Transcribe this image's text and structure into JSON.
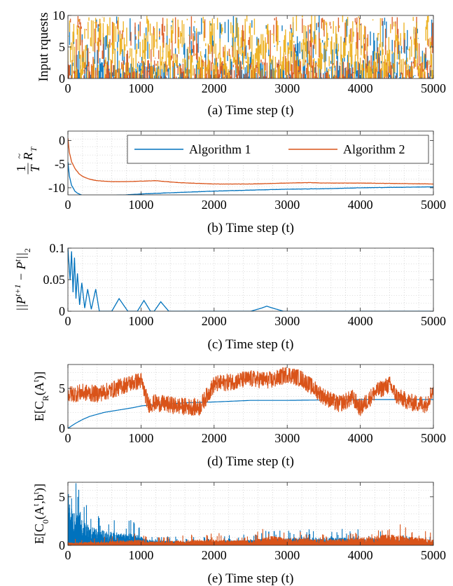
{
  "chart_data": [
    {
      "type": "bar",
      "ylabel": "Input rquests",
      "caption": "(a) Time step (t)",
      "xlim": [
        0,
        5000
      ],
      "ylim": [
        0,
        10
      ],
      "xticks": [
        0,
        1000,
        2000,
        3000,
        4000,
        5000
      ],
      "yticks": [
        0,
        5,
        10
      ],
      "grid": false,
      "series": [
        {
          "color": "#0072BD",
          "description": "dense random request counts over 5000 steps, range 0-10"
        },
        {
          "color": "#D95319",
          "description": "dense random request counts over 5000 steps, range 0-10"
        },
        {
          "color": "#EDB120",
          "description": "dense random request counts over 5000 steps, range 0-10"
        }
      ]
    },
    {
      "type": "line",
      "ylabel_frac_num": "1",
      "ylabel_frac_den": "T",
      "ylabel_sym": "R",
      "ylabel_sub": "T",
      "caption": "(b) Time step (t)",
      "xlim": [
        0,
        5000
      ],
      "ylim": [
        -11.5,
        2
      ],
      "xticks": [
        0,
        1000,
        2000,
        3000,
        4000,
        5000
      ],
      "yticks": [
        0,
        -5,
        -10
      ],
      "grid": true,
      "legend": "top-right",
      "series": [
        {
          "name": "Algorithm 1",
          "color": "#0072BD",
          "x": [
            0,
            20,
            50,
            100,
            150,
            200,
            300,
            400,
            600,
            800,
            1000,
            1500,
            2000,
            2500,
            3000,
            3500,
            4000,
            4500,
            5000
          ],
          "y": [
            -4.5,
            -7.5,
            -9.5,
            -10.8,
            -11.3,
            -11.6,
            -11.7,
            -11.7,
            -11.6,
            -11.5,
            -11.3,
            -11.0,
            -10.7,
            -10.5,
            -10.3,
            -10.2,
            -10.0,
            -9.9,
            -9.8
          ]
        },
        {
          "name": "Algorithm 2",
          "color": "#D95319",
          "x": [
            0,
            20,
            50,
            100,
            150,
            200,
            300,
            400,
            600,
            800,
            1000,
            1200,
            1500,
            2000,
            2500,
            3000,
            3300,
            3500,
            4000,
            4500,
            5000
          ],
          "y": [
            0.5,
            -2.5,
            -4.5,
            -6.0,
            -7.0,
            -7.6,
            -8.2,
            -8.5,
            -8.7,
            -8.7,
            -8.6,
            -8.5,
            -8.9,
            -9.2,
            -9.2,
            -9.0,
            -8.9,
            -9.0,
            -9.0,
            -9.1,
            -9.2
          ]
        }
      ]
    },
    {
      "type": "line",
      "ylabel": "||P^{t+1} − P^t||_2",
      "caption": "(c) Time step (t)",
      "xlim": [
        0,
        5000
      ],
      "ylim": [
        0,
        0.1
      ],
      "xticks": [
        0,
        1000,
        2000,
        3000,
        4000,
        5000
      ],
      "yticks": [
        0,
        0.05,
        0.1
      ],
      "grid": true,
      "series": [
        {
          "color": "#0072BD",
          "description": "damped oscillation: peaks ~0.09 near t=50, decaying to ~0.02 bumps near t=700, 1000, 1250; small bump 0.008 near t=2700; otherwise 0",
          "x": [
            0,
            30,
            50,
            70,
            90,
            110,
            130,
            160,
            190,
            230,
            270,
            320,
            380,
            430,
            600,
            700,
            820,
            950,
            1040,
            1130,
            1180,
            1270,
            1380,
            1500,
            2500,
            2650,
            2720,
            2800,
            2950,
            5000
          ],
          "y": [
            0.1,
            0.05,
            0.095,
            0.03,
            0.085,
            0.02,
            0.06,
            0.01,
            0.045,
            0.005,
            0.035,
            0.003,
            0.035,
            0.0,
            0.0,
            0.02,
            0.0,
            0.0,
            0.017,
            0.0,
            0.0,
            0.015,
            0.0,
            0.0,
            0.0,
            0.005,
            0.008,
            0.005,
            0.0,
            0.0
          ]
        }
      ]
    },
    {
      "type": "line",
      "ylabel_main": "E[C",
      "ylabel_sub": "R",
      "ylabel_rest": "(A",
      "ylabel_sup": "t",
      "ylabel_close": ")]",
      "caption": "(d) Time step (t)",
      "xlim": [
        0,
        5000
      ],
      "ylim": [
        0,
        8
      ],
      "xticks": [
        0,
        1000,
        2000,
        3000,
        4000,
        5000
      ],
      "yticks": [
        0,
        5
      ],
      "grid": true,
      "series": [
        {
          "color": "#0072BD",
          "x": [
            0,
            50,
            100,
            200,
            300,
            500,
            700,
            900,
            1000,
            1100,
            1300,
            1600,
            2000,
            2500,
            3000,
            4000,
            5000
          ],
          "y": [
            0.0,
            0.3,
            0.6,
            1.1,
            1.5,
            2.0,
            2.3,
            2.6,
            2.8,
            2.9,
            3.0,
            3.2,
            3.3,
            3.5,
            3.5,
            3.6,
            3.6
          ]
        },
        {
          "color": "#D95319",
          "description": "noisy cost trace fluctuating roughly between 1 and 8",
          "x": [
            0,
            200,
            400,
            600,
            800,
            1000,
            1100,
            1200,
            1500,
            1800,
            2000,
            2200,
            2500,
            2800,
            3000,
            3200,
            3500,
            3700,
            3900,
            4000,
            4200,
            4400,
            4500,
            4700,
            4900,
            5000
          ],
          "y": [
            4.2,
            4.5,
            4.3,
            4.8,
            5.5,
            6.0,
            3.0,
            3.2,
            2.8,
            2.6,
            5.5,
            5.8,
            6.2,
            6.0,
            6.8,
            6.2,
            4.0,
            3.0,
            3.8,
            2.5,
            4.5,
            5.5,
            4.0,
            3.2,
            3.0,
            5.0
          ]
        }
      ]
    },
    {
      "type": "line",
      "ylabel_main": "E[C",
      "ylabel_sub": "0",
      "ylabel_rest": "(A",
      "ylabel_sup1": "t",
      "ylabel_mid": ",b",
      "ylabel_sup2": "t",
      "ylabel_close": ")]",
      "caption": "(e) Time step (t)",
      "xlim": [
        0,
        5000
      ],
      "ylim": [
        0,
        6.5
      ],
      "xticks": [
        0,
        1000,
        2000,
        3000,
        4000,
        5000
      ],
      "yticks": [
        0,
        5
      ],
      "grid": true,
      "series": [
        {
          "color": "#0072BD",
          "description": "noisy spikes decaying from ~6 near t=0 to ~1 by t=1100, small spikes thereafter",
          "x": [
            0,
            50,
            100,
            200,
            300,
            500,
            700,
            900,
            1100,
            1500,
            2000,
            3000,
            4000,
            5000
          ],
          "y": [
            5.5,
            4.5,
            3.5,
            2.8,
            2.0,
            1.5,
            1.3,
            1.2,
            0.6,
            0.4,
            0.4,
            0.8,
            0.8,
            0.4
          ]
        },
        {
          "color": "#D95319",
          "description": "noisy spikes mostly below 1, occasional spikes up to ~3.5",
          "x": [
            0,
            500,
            1000,
            1100,
            1500,
            2000,
            2500,
            2800,
            3000,
            3500,
            4000,
            4400,
            5000
          ],
          "y": [
            0.3,
            0.4,
            0.6,
            0.4,
            0.5,
            0.6,
            0.5,
            1.0,
            0.8,
            0.6,
            0.8,
            1.2,
            0.6
          ]
        }
      ]
    }
  ],
  "legend_entries": [
    "Algorithm 1",
    "Algorithm 2"
  ]
}
